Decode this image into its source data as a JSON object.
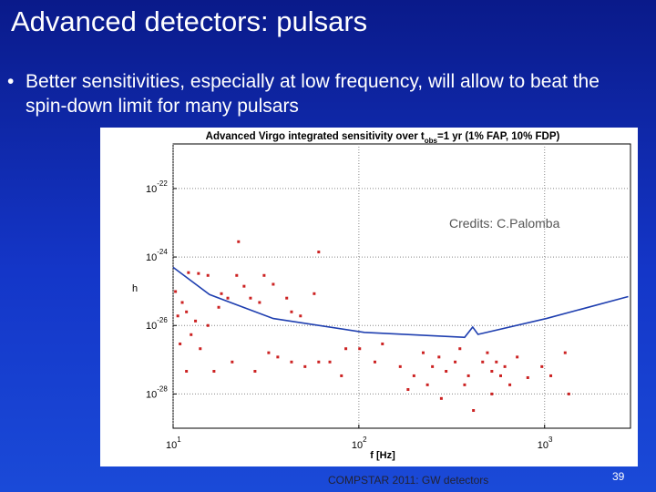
{
  "slide_title": "Advanced detectors: pulsars",
  "bullet": "Better sensitivities, especially at low frequency, will allow to beat the spin-down limit for many pulsars",
  "footer": "COMPSTAR 2011: GW detectors",
  "page_number": "39",
  "chart_data": {
    "type": "scatter",
    "title_parts": [
      "Advanced Virgo integrated sensitivity over t",
      "obs",
      "=1 yr (1% FAP, 10% FDP)"
    ],
    "x_label": "f [Hz]",
    "y_label": "h",
    "annotation": "Credits: C.Palomba",
    "log_x": true,
    "log_y": true,
    "grid": true,
    "xlim": [
      10,
      2900
    ],
    "ylim": [
      1e-29,
      2e-21
    ],
    "xticks": [
      {
        "value": 10,
        "label": "10",
        "exponent": "1"
      },
      {
        "value": 100,
        "label": "10",
        "exponent": "2"
      },
      {
        "value": 1000,
        "label": "10",
        "exponent": "3"
      }
    ],
    "yticks": [
      {
        "value": 1e-22,
        "label": "10",
        "exponent": "-22"
      },
      {
        "value": 1e-24,
        "label": "10",
        "exponent": "-24"
      },
      {
        "value": 1e-26,
        "label": "10",
        "exponent": "-26"
      },
      {
        "value": 1e-28,
        "label": "10",
        "exponent": "-28"
      }
    ],
    "curve": {
      "color": "#1f3fb0",
      "x": [
        10,
        15.7,
        34.6,
        107,
        371,
        410,
        438,
        1023,
        2820
      ],
      "values": [
        5e-25,
        8e-26,
        1.6e-26,
        6.3e-27,
        4.5e-27,
        9e-27,
        5.5e-27,
        1.6e-26,
        7e-26
      ]
    },
    "points": {
      "color": "#cc2222",
      "x": [
        22.5,
        60.8,
        12.1,
        13.7,
        10.3,
        11.2,
        10.6,
        11.8,
        13.2,
        15.4,
        17.6,
        19.7,
        12.5,
        10.9,
        14.0,
        16.6,
        11.8,
        22.0,
        24.1,
        26.1,
        29.2,
        30.9,
        34.6,
        40.9,
        43.4,
        48.5,
        57.5,
        36.6,
        43.4,
        51.3,
        60.8,
        69.8,
        80.6,
        32.7,
        27.6,
        20.8,
        85.1,
        101,
        122,
        134,
        167,
        198,
        184,
        222,
        249,
        270,
        295,
        330,
        350,
        371,
        389,
        414,
        464,
        492,
        520,
        550,
        580,
        611,
        650,
        712,
        812,
        967,
        1080,
        1290,
        1350,
        234,
        278,
        520,
        15.4,
        18.2
      ],
      "values": [
        2.8e-24,
        1.4e-24,
        3.5e-25,
        3.3e-25,
        9.8e-26,
        4.7e-26,
        1.9e-26,
        2.5e-26,
        1.35e-26,
        1e-26,
        3.4e-26,
        6.3e-26,
        5.4e-27,
        2.9e-27,
        2.1e-27,
        4.6e-28,
        4.6e-28,
        2.9e-25,
        1.4e-25,
        6.3e-26,
        4.7e-26,
        2.9e-25,
        1.6e-25,
        6.3e-26,
        2.5e-26,
        1.9e-26,
        8.5e-26,
        1.2e-27,
        8.6e-28,
        6.3e-28,
        8.6e-28,
        8.6e-28,
        3.4e-28,
        1.6e-27,
        4.6e-28,
        8.6e-28,
        2.1e-27,
        2.1e-27,
        8.6e-28,
        2.9e-27,
        6.3e-28,
        3.4e-28,
        1.35e-28,
        1.6e-27,
        6.3e-28,
        1.2e-27,
        4.6e-28,
        8.6e-28,
        2.1e-27,
        1.85e-28,
        3.4e-28,
        3.3e-29,
        8.6e-28,
        1.6e-27,
        4.6e-28,
        8.6e-28,
        3.4e-28,
        6.3e-28,
        1.85e-28,
        1.2e-27,
        3e-28,
        6.3e-28,
        3.4e-28,
        1.6e-27,
        1e-28,
        1.85e-28,
        7.4e-29,
        1e-28,
        2.9e-25,
        8.5e-26
      ]
    }
  }
}
